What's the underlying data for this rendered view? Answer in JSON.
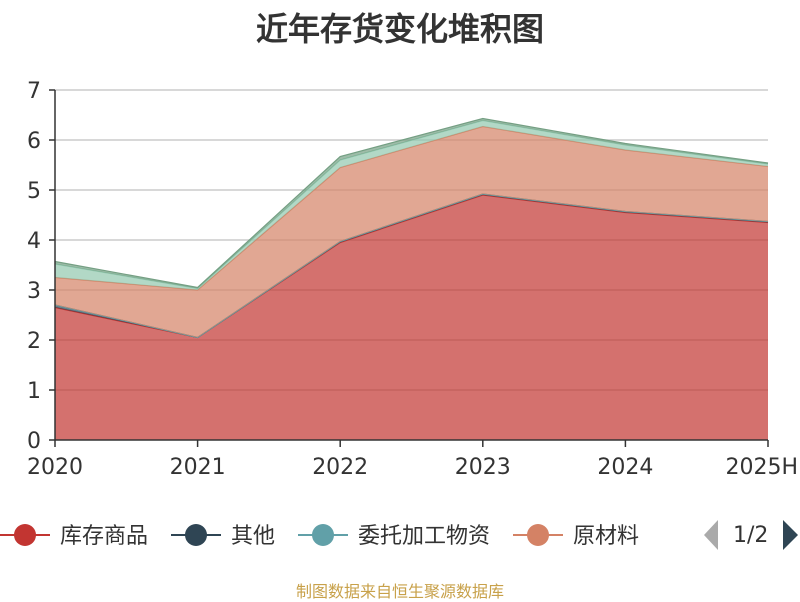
{
  "chart_data": {
    "type": "area",
    "stacked": true,
    "title": "近年存货变化堆积图",
    "categories": [
      "2020",
      "2021",
      "2022",
      "2023",
      "2024",
      "2025H"
    ],
    "ylim": [
      0,
      7
    ],
    "yticks": [
      0,
      1,
      2,
      3,
      4,
      5,
      6,
      7
    ],
    "grid": true,
    "legend_position": "bottom",
    "series": [
      {
        "name": "库存商品",
        "color": "#c23531",
        "values": [
          2.65,
          2.05,
          3.95,
          4.9,
          4.55,
          4.35
        ]
      },
      {
        "name": "其他",
        "color": "#2f4554",
        "values": [
          0.05,
          0.0,
          0.02,
          0.02,
          0.02,
          0.02
        ]
      },
      {
        "name": "委托加工物资",
        "color": "#61a0a8",
        "values": [
          0.0,
          0.0,
          0.0,
          0.0,
          0.0,
          0.0
        ]
      },
      {
        "name": "原材料",
        "color": "#d48265",
        "values": [
          0.55,
          0.95,
          1.48,
          1.35,
          1.23,
          1.1
        ]
      },
      {
        "name": "",
        "color": "#91c7ae",
        "values": [
          0.27,
          0.03,
          0.15,
          0.12,
          0.1,
          0.05
        ]
      },
      {
        "name": "",
        "color": "#749f83",
        "values": [
          0.05,
          0.02,
          0.07,
          0.04,
          0.03,
          0.02
        ]
      }
    ]
  },
  "legend": {
    "page_indicator": "1/2"
  },
  "source_note": "制图数据来自恒生聚源数据库"
}
